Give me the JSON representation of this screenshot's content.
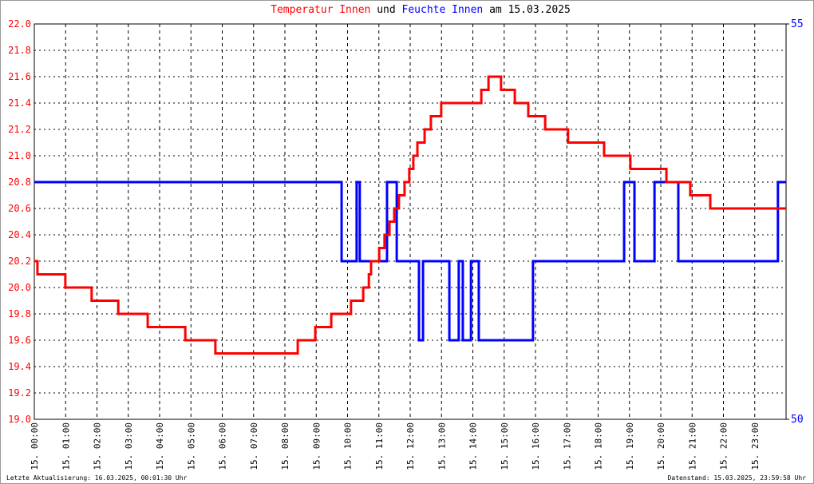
{
  "chart_data": {
    "type": "line",
    "title_join": "und",
    "title_date": "am 15.03.2025",
    "footer_left": "Letzte Aktualisierung: 16.03.2025, 00:01:30 Uhr",
    "footer_right": "Datenstand: 15.03.2025, 23:59:58 Uhr",
    "grid": true,
    "xlim": [
      0,
      24
    ],
    "xticks": [
      {
        "value": 0,
        "label": "15. 00:00"
      },
      {
        "value": 1,
        "label": "15. 01:00"
      },
      {
        "value": 2,
        "label": "15. 02:00"
      },
      {
        "value": 3,
        "label": "15. 03:00"
      },
      {
        "value": 4,
        "label": "15. 04:00"
      },
      {
        "value": 5,
        "label": "15. 05:00"
      },
      {
        "value": 6,
        "label": "15. 06:00"
      },
      {
        "value": 7,
        "label": "15. 07:00"
      },
      {
        "value": 8,
        "label": "15. 08:00"
      },
      {
        "value": 9,
        "label": "15. 09:00"
      },
      {
        "value": 10,
        "label": "15. 10:00"
      },
      {
        "value": 11,
        "label": "15. 11:00"
      },
      {
        "value": 12,
        "label": "15. 12:00"
      },
      {
        "value": 13,
        "label": "15. 13:00"
      },
      {
        "value": 14,
        "label": "15. 14:00"
      },
      {
        "value": 15,
        "label": "15. 15:00"
      },
      {
        "value": 16,
        "label": "15. 16:00"
      },
      {
        "value": 17,
        "label": "15. 17:00"
      },
      {
        "value": 18,
        "label": "15. 18:00"
      },
      {
        "value": 19,
        "label": "15. 19:00"
      },
      {
        "value": 20,
        "label": "15. 20:00"
      },
      {
        "value": 21,
        "label": "15. 21:00"
      },
      {
        "value": 22,
        "label": "15. 22:00"
      },
      {
        "value": 23,
        "label": "15. 23:00"
      }
    ],
    "ylim": [
      19.0,
      22.0
    ],
    "yticks": [
      {
        "value": 19.0,
        "label": "19.0"
      },
      19.2,
      19.4,
      19.6,
      19.8,
      {
        "value": 20.0,
        "label": "20.0"
      },
      20.2,
      20.4,
      20.6,
      20.8,
      {
        "value": 21.0,
        "label": "21.0"
      },
      21.2,
      21.4,
      21.6,
      21.8,
      {
        "value": 22.0,
        "label": "22.0"
      }
    ],
    "y2lim": [
      50,
      55
    ],
    "y2ticks": [
      50,
      55
    ],
    "series": [
      {
        "name": "Temperatur Innen",
        "color": "#ff0000",
        "axis": "y",
        "x": [
          0,
          0.1,
          0.1,
          0.99,
          0.99,
          1.83,
          1.83,
          2.68,
          2.68,
          3.62,
          3.62,
          4.82,
          4.82,
          5.78,
          5.78,
          8.41,
          8.41,
          8.97,
          8.97,
          9.48,
          9.48,
          10.11,
          10.11,
          10.5,
          10.5,
          10.68,
          10.68,
          10.75,
          10.75,
          11.01,
          11.01,
          11.18,
          11.18,
          11.34,
          11.34,
          11.49,
          11.49,
          11.64,
          11.64,
          11.82,
          11.82,
          11.97,
          11.97,
          12.1,
          12.1,
          12.23,
          12.23,
          12.46,
          12.46,
          12.66,
          12.66,
          12.99,
          12.99,
          14.27,
          14.27,
          14.5,
          14.5,
          14.9,
          14.9,
          15.34,
          15.34,
          15.77,
          15.77,
          16.31,
          16.31,
          17.04,
          17.04,
          18.19,
          18.19,
          19.03,
          19.03,
          20.18,
          20.18,
          20.94,
          20.94,
          21.58,
          21.58,
          24
        ],
        "values": [
          20.2,
          20.2,
          20.1,
          20.1,
          20.0,
          20.0,
          19.9,
          19.9,
          19.8,
          19.8,
          19.7,
          19.7,
          19.6,
          19.6,
          19.5,
          19.5,
          19.6,
          19.6,
          19.7,
          19.7,
          19.8,
          19.8,
          19.9,
          19.9,
          20.0,
          20.0,
          20.1,
          20.1,
          20.2,
          20.2,
          20.3,
          20.3,
          20.4,
          20.4,
          20.5,
          20.5,
          20.6,
          20.6,
          20.7,
          20.7,
          20.8,
          20.8,
          20.9,
          20.9,
          21.0,
          21.0,
          21.1,
          21.1,
          21.2,
          21.2,
          21.3,
          21.3,
          21.4,
          21.4,
          21.5,
          21.5,
          21.6,
          21.6,
          21.5,
          21.5,
          21.4,
          21.4,
          21.3,
          21.3,
          21.2,
          21.2,
          21.1,
          21.1,
          21.0,
          21.0,
          20.9,
          20.9,
          20.8,
          20.8,
          20.7,
          20.7,
          20.6,
          20.6
        ]
      },
      {
        "name": "Feuchte Innen",
        "color": "#0000ff",
        "axis": "y2",
        "x": [
          0,
          9.81,
          9.81,
          10.29,
          10.29,
          10.39,
          10.39,
          11.26,
          11.26,
          11.57,
          11.57,
          12.28,
          12.28,
          12.41,
          12.41,
          13.25,
          13.25,
          13.55,
          13.55,
          13.68,
          13.68,
          13.94,
          13.94,
          14.19,
          14.19,
          15.92,
          15.92,
          18.83,
          18.83,
          19.16,
          19.16,
          19.8,
          19.8,
          20.56,
          20.56,
          23.74,
          23.74,
          24
        ],
        "values": [
          53,
          53,
          52,
          52,
          53,
          53,
          52,
          52,
          53,
          53,
          52,
          52,
          51,
          51,
          52,
          52,
          51,
          51,
          52,
          52,
          51,
          51,
          52,
          52,
          51,
          51,
          52,
          52,
          53,
          53,
          52,
          52,
          53,
          53,
          52,
          52,
          53,
          53
        ]
      }
    ]
  }
}
